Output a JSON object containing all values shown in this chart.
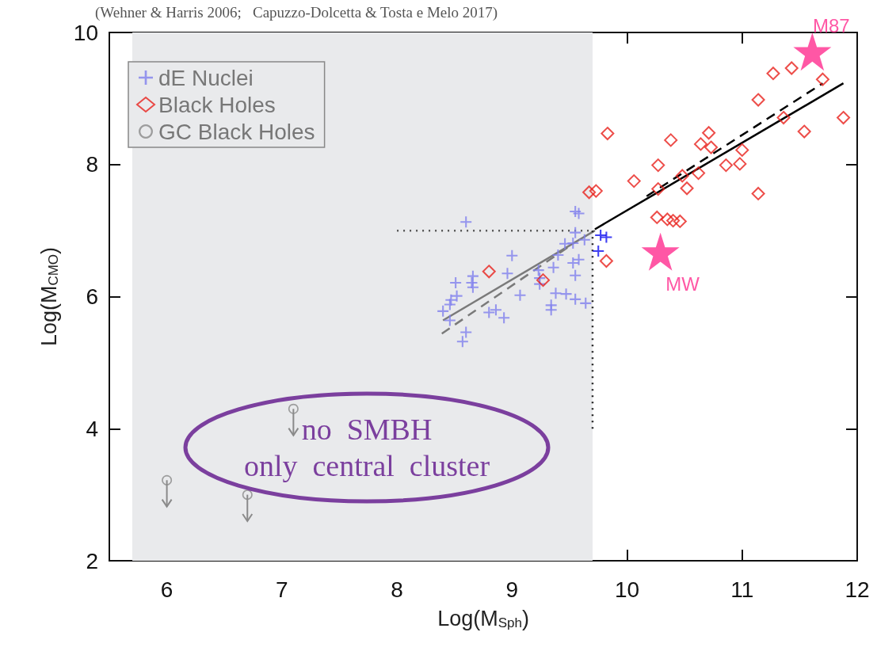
{
  "chart_data": {
    "type": "scatter",
    "xlabel": "Log(M$_{Sph}$)",
    "ylabel": "Log(M$_{CMO}$)",
    "xlim": [
      5.5,
      12
    ],
    "xticks": [
      6,
      7,
      8,
      9,
      10,
      11,
      12
    ],
    "ylim": [
      2,
      10
    ],
    "yticks": [
      2,
      4,
      6,
      8,
      10
    ],
    "grid": false,
    "legend": "top left",
    "annotations": [
      "(Wehner & Harris 2006;   Capuzzo-Dolcetta & Tosta e Melo 2017)",
      "no  SMBH\nonly  central  cluster"
    ],
    "bands": [
      {
        "axis": "x",
        "from": 5.7,
        "to": 9.7,
        "color": "#e9eaec"
      }
    ],
    "series": [
      {
        "name": "dE Nuclei",
        "color": "#8080ee",
        "marker": "cross",
        "x": [
          8.6,
          9.55,
          9.58,
          9.55,
          9.63,
          9.46,
          9.53,
          9.4,
          9.0,
          9.58,
          9.53,
          9.36,
          9.23,
          8.96,
          8.66,
          8.65,
          8.66,
          8.51,
          9.24,
          9.24,
          9.55,
          8.52,
          8.47,
          8.46,
          8.4,
          9.07,
          9.38,
          9.47,
          9.55,
          9.64,
          8.8,
          8.86,
          8.93,
          9.34,
          9.34,
          8.46,
          8.6,
          8.57
        ],
        "values": [
          7.13,
          7.29,
          7.26,
          6.97,
          6.86,
          6.8,
          6.81,
          6.63,
          6.62,
          6.56,
          6.51,
          6.44,
          6.4,
          6.35,
          6.31,
          6.21,
          6.14,
          6.21,
          6.28,
          6.19,
          6.32,
          6.01,
          5.95,
          5.88,
          5.78,
          6.02,
          6.05,
          6.04,
          5.96,
          5.9,
          5.76,
          5.8,
          5.68,
          5.87,
          5.8,
          5.64,
          5.46,
          5.32
        ]
      },
      {
        "color": "#1010f0",
        "marker": "cross",
        "x": [
          9.77,
          9.82,
          9.75
        ],
        "values": [
          6.93,
          6.9,
          6.69
        ]
      },
      {
        "name": "Black Holes",
        "color": "#e8201c",
        "marker": "diamond",
        "x": [
          9.83,
          10.06,
          10.27,
          10.27,
          10.38,
          10.48,
          10.52,
          10.62,
          10.64,
          10.71,
          10.73,
          10.86,
          10.98,
          11.0,
          11.14,
          11.14,
          11.27,
          11.43,
          11.36,
          11.54,
          11.7,
          11.88,
          10.26,
          10.35,
          10.4,
          10.46,
          9.82,
          9.73,
          9.67,
          8.8,
          9.27
        ],
        "values": [
          8.47,
          7.75,
          7.99,
          7.63,
          8.37,
          7.83,
          7.64,
          7.87,
          8.31,
          8.48,
          8.26,
          7.99,
          8.01,
          8.22,
          8.98,
          7.56,
          9.38,
          9.46,
          8.71,
          8.5,
          9.29,
          8.71,
          7.2,
          7.17,
          7.15,
          7.14,
          6.54,
          7.6,
          7.58,
          6.38,
          6.25
        ]
      },
      {
        "name": "GC Black Holes",
        "color": "#8a8a8a",
        "marker": "circle",
        "x": [
          6.0,
          6.7,
          7.1
        ],
        "values": [
          3.22,
          3.0,
          4.3
        ],
        "errors": [
          [
            2.82,
            3.22
          ],
          [
            2.6,
            3.0
          ],
          [
            3.9,
            4.3
          ]
        ]
      },
      {
        "type": "line",
        "color": "#000000",
        "line_style": "solid",
        "x": [
          9.72,
          11.88
        ],
        "values": [
          7.02,
          9.23
        ]
      },
      {
        "type": "line",
        "color": "#000000",
        "line_style": "dashed",
        "x": [
          10.17,
          11.7
        ],
        "values": [
          7.52,
          9.23
        ]
      },
      {
        "type": "line",
        "color": "#7a7a7a",
        "line_style": "solid",
        "x": [
          8.4,
          9.72
        ],
        "values": [
          5.64,
          7.0
        ]
      },
      {
        "type": "line",
        "color": "#7a7a7a",
        "line_style": "dashed",
        "x": [
          8.39,
          9.53
        ],
        "values": [
          5.44,
          6.8
        ]
      },
      {
        "type": "line",
        "color": "#555555",
        "line_style": "dotted",
        "x": [
          8.0,
          9.7
        ],
        "values": [
          7.0,
          7.0
        ]
      },
      {
        "type": "line",
        "color": "#222222",
        "line_style": "dotted",
        "x": [
          9.7,
          9.7
        ],
        "values": [
          7.0,
          4.0
        ]
      },
      {
        "color": "#ff2d8e",
        "marker": "star",
        "x": [
          11.61,
          10.29
        ],
        "values": [
          9.71,
          6.68
        ],
        "value_labels": [
          "M87",
          "MW"
        ]
      }
    ]
  }
}
